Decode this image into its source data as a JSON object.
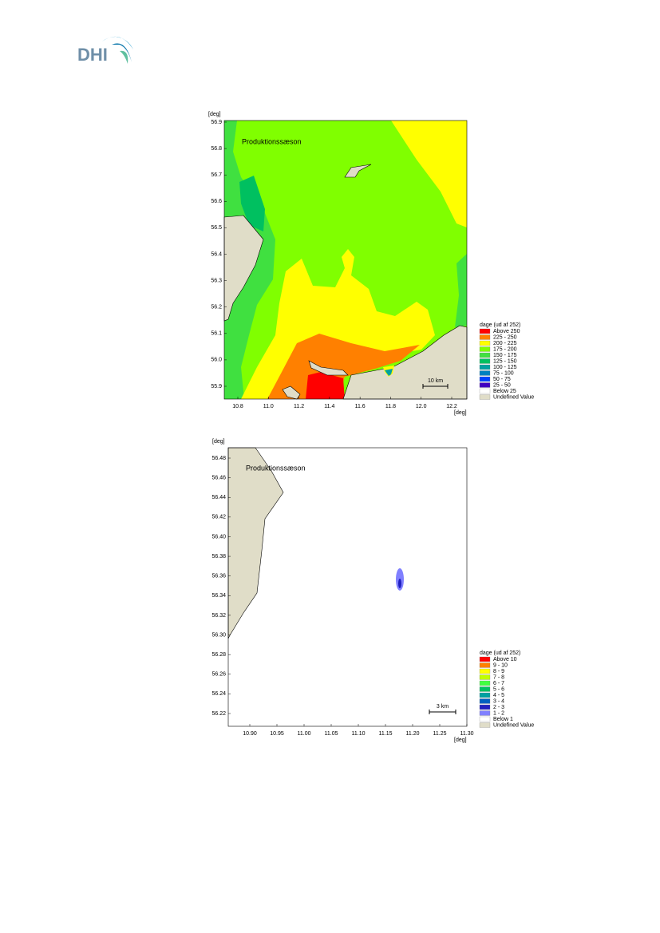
{
  "logo": "DHI",
  "maps": [
    {
      "title": "Produktionssæson",
      "y_unit": "[deg]",
      "x_unit": "[deg]",
      "yticks": [
        "56.9",
        "56.8",
        "56.7",
        "56.6",
        "56.5",
        "56.4",
        "56.3",
        "56.2",
        "56.1",
        "56.0",
        "55.9"
      ],
      "xticks": [
        "10.8",
        "11.0",
        "11.2",
        "11.4",
        "11.6",
        "11.8",
        "12.0",
        "12.2"
      ],
      "legend_title": "dage (ud af 252)",
      "legend": [
        {
          "label": "Above 250",
          "color": "#ff0000"
        },
        {
          "label": "225 - 250",
          "color": "#ff8000"
        },
        {
          "label": "200 - 225",
          "color": "#ffff00"
        },
        {
          "label": "175 - 200",
          "color": "#80ff00"
        },
        {
          "label": "150 - 175",
          "color": "#40e040"
        },
        {
          "label": "125 - 150",
          "color": "#00c060"
        },
        {
          "label": "100 - 125",
          "color": "#00a0a0"
        },
        {
          "label": "75 - 100",
          "color": "#0080c0"
        },
        {
          "label": "50 - 75",
          "color": "#0040ff"
        },
        {
          "label": "25 - 50",
          "color": "#4000c0"
        },
        {
          "label": "Below 25",
          "color": "#ffffff"
        },
        {
          "label": "Undefined Value",
          "color": "#e0ddc8"
        }
      ],
      "scale_bar": "10 km"
    },
    {
      "title": "Produktionssæson",
      "y_unit": "[deg]",
      "x_unit": "[deg]",
      "yticks": [
        "56.48",
        "56.46",
        "56.44",
        "56.42",
        "56.40",
        "56.38",
        "56.36",
        "56.34",
        "56.32",
        "56.30",
        "56.28",
        "56.26",
        "56.24",
        "56.22"
      ],
      "xticks": [
        "10.90",
        "10.95",
        "11.00",
        "11.05",
        "11.10",
        "11.15",
        "11.20",
        "11.25",
        "11.30"
      ],
      "legend_title": "dage (ud af 252)",
      "legend": [
        {
          "label": "Above 10",
          "color": "#ff0000"
        },
        {
          "label": "9 - 10",
          "color": "#ff8000"
        },
        {
          "label": "8 - 9",
          "color": "#ffff00"
        },
        {
          "label": "7 - 8",
          "color": "#c0ff00"
        },
        {
          "label": "6 - 7",
          "color": "#40ff40"
        },
        {
          "label": "5 - 6",
          "color": "#00c060"
        },
        {
          "label": "4 - 5",
          "color": "#00a0a0"
        },
        {
          "label": "3 - 4",
          "color": "#0060c0"
        },
        {
          "label": "2 - 3",
          "color": "#2020c0"
        },
        {
          "label": "1 - 2",
          "color": "#8080ff"
        },
        {
          "label": "Below 1",
          "color": "#ffffff"
        },
        {
          "label": "Undefined Value",
          "color": "#e0ddc8"
        }
      ],
      "scale_bar": "3 km"
    }
  ]
}
